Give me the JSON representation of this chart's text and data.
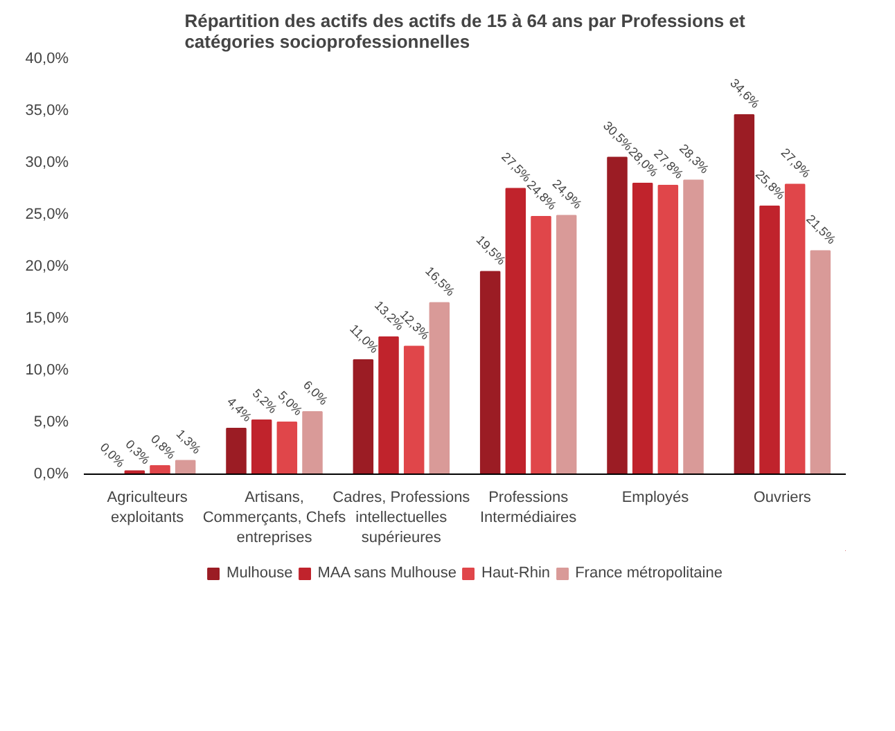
{
  "chart_data": {
    "type": "bar",
    "title": "Répartition des actifs des actifs de 15 à 64 ans par Professions et catégories socioprofessionnelles",
    "categories": [
      "Agriculteurs exploitants",
      "Artisans, Commerçants, Chefs entreprises",
      "Cadres, Professions intellectuelles supérieures",
      "Professions Intermédiaires",
      "Employés",
      "Ouvriers"
    ],
    "series": [
      {
        "name": "Mulhouse",
        "color": "#9b1c24",
        "values": [
          0.0,
          4.4,
          11.0,
          19.5,
          30.5,
          34.6
        ],
        "value_labels": [
          "0,0%",
          "4,4%",
          "11,0%",
          "19,5%",
          "30,5%",
          "34,6%"
        ]
      },
      {
        "name": "MAA sans Mulhouse",
        "color": "#c0232c",
        "values": [
          0.3,
          5.2,
          13.2,
          27.5,
          28.0,
          25.8
        ],
        "value_labels": [
          "0,3%",
          "5,2%",
          "13,2%",
          "27,5%",
          "28,0%",
          "25,8%"
        ]
      },
      {
        "name": "Haut-Rhin",
        "color": "#e0464a",
        "values": [
          0.8,
          5.0,
          12.3,
          24.8,
          27.8,
          27.9
        ],
        "value_labels": [
          "0,8%",
          "5,0%",
          "12,3%",
          "24,8%",
          "27,8%",
          "27,9%"
        ]
      },
      {
        "name": "France métropolitaine",
        "color": "#d99a98",
        "values": [
          1.3,
          6.0,
          16.5,
          24.9,
          28.3,
          21.5
        ],
        "value_labels": [
          "1,3%",
          "6,0%",
          "16,5%",
          "24,9%",
          "28,3%",
          "21,5%"
        ]
      }
    ],
    "ylim": [
      0,
      40
    ],
    "yticks": [
      {
        "value": 0,
        "label": "0,0%"
      },
      {
        "value": 5,
        "label": "5,0%"
      },
      {
        "value": 10,
        "label": "10,0%"
      },
      {
        "value": 15,
        "label": "15,0%"
      },
      {
        "value": 20,
        "label": "20,0%"
      },
      {
        "value": 25,
        "label": "25,0%"
      },
      {
        "value": 30,
        "label": "30,0%"
      },
      {
        "value": 35,
        "label": "35,0%"
      },
      {
        "value": 40,
        "label": "40,0%"
      }
    ],
    "grid": false,
    "legend": "bottom"
  }
}
